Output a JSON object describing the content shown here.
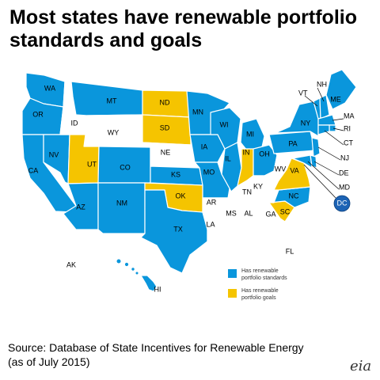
{
  "title": "Most states have renewable portfolio standards and goals",
  "source_line1": "Source: Database of State Incentives for Renewable Energy",
  "source_line2": "(as of July 2015)",
  "logo_text": "eia",
  "colors": {
    "standards": "#0a96dc",
    "goals": "#f5c400",
    "none": "#ffffff",
    "dc": "#1c63b5",
    "outline": "#9a9a9a"
  },
  "legend": {
    "standards_line1": "Has renewable",
    "standards_line2": "portfolio standards",
    "goals_line1": "Has renewable",
    "goals_line2": "portfolio goals"
  },
  "states": {
    "WA": "standards",
    "OR": "standards",
    "CA": "standards",
    "NV": "standards",
    "ID": "none",
    "MT": "standards",
    "WY": "none",
    "UT": "goals",
    "AZ": "standards",
    "CO": "standards",
    "NM": "standards",
    "ND": "goals",
    "SD": "goals",
    "NE": "none",
    "KS": "standards",
    "OK": "goals",
    "TX": "standards",
    "MN": "standards",
    "IA": "standards",
    "MO": "standards",
    "AR": "none",
    "LA": "none",
    "WI": "standards",
    "IL": "standards",
    "MI": "standards",
    "IN": "goals",
    "OH": "standards",
    "KY": "none",
    "TN": "none",
    "MS": "none",
    "AL": "none",
    "GA": "none",
    "FL": "none",
    "SC": "goals",
    "NC": "standards",
    "VA": "goals",
    "WV": "none",
    "PA": "standards",
    "NY": "standards",
    "VT": "standards",
    "NH": "standards",
    "ME": "standards",
    "MA": "standards",
    "RI": "standards",
    "CT": "standards",
    "NJ": "standards",
    "DE": "standards",
    "MD": "standards",
    "DC": "standards",
    "AK": "none",
    "HI": "standards"
  },
  "labels": {
    "WA": "WA",
    "OR": "OR",
    "CA": "CA",
    "NV": "NV",
    "ID": "ID",
    "MT": "MT",
    "WY": "WY",
    "UT": "UT",
    "AZ": "AZ",
    "CO": "CO",
    "NM": "NM",
    "ND": "ND",
    "SD": "SD",
    "NE": "NE",
    "KS": "KS",
    "OK": "OK",
    "TX": "TX",
    "MN": "MN",
    "IA": "IA",
    "MO": "MO",
    "AR": "AR",
    "LA": "LA",
    "WI": "WI",
    "IL": "IL",
    "MI": "MI",
    "IN": "IN",
    "OH": "OH",
    "KY": "KY",
    "TN": "TN",
    "MS": "MS",
    "AL": "AL",
    "GA": "GA",
    "FL": "FL",
    "SC": "SC",
    "NC": "NC",
    "VA": "VA",
    "WV": "WV",
    "PA": "PA",
    "NY": "NY",
    "VT": "VT",
    "NH": "NH",
    "ME": "ME",
    "MA": "MA",
    "RI": "RI",
    "CT": "CT",
    "NJ": "NJ",
    "DE": "DE",
    "MD": "MD",
    "DC": "DC",
    "AK": "AK",
    "HI": "HI"
  }
}
